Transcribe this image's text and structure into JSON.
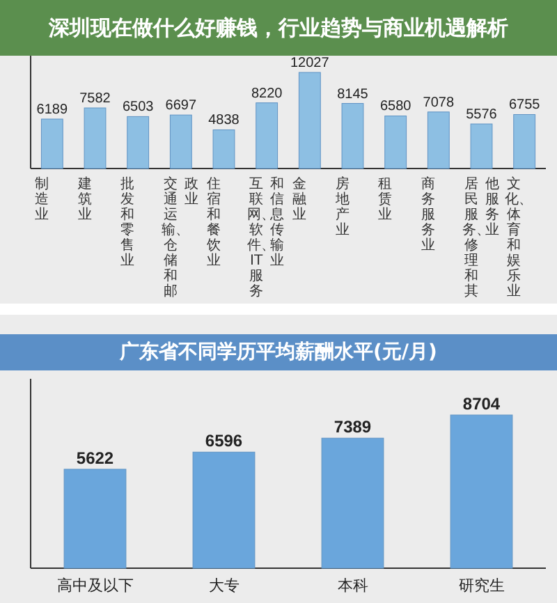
{
  "chart_data": [
    {
      "type": "bar",
      "title": "深圳现在做什么好赚钱，行业趋势与商业机遇解析",
      "categories": [
        "制造业",
        "建筑业",
        "批发和零售业",
        "交通运输、仓储和邮政业",
        "住宿和餐饮业",
        "互联网、软件、IT服务和信息传输业",
        "金融业",
        "房地产业",
        "租赁业",
        "商务服务业",
        "居民服务、修理和其他服务业",
        "文化、体育和娱乐业"
      ],
      "values": [
        6189,
        7582,
        6503,
        6697,
        4838,
        8220,
        12027,
        8145,
        6580,
        7078,
        5576,
        6755
      ],
      "color": "#8dbfe3",
      "data_labels": true,
      "tick_labels": "x"
    },
    {
      "type": "bar",
      "title": "广东省不同学历平均薪酬水平(元/月)",
      "categories": [
        "高中及以下",
        "大专",
        "本科",
        "研究生"
      ],
      "values": [
        5622,
        6596,
        7389,
        8704
      ],
      "color": "#6aa6dc",
      "data_labels": true,
      "tick_labels": "x"
    }
  ]
}
